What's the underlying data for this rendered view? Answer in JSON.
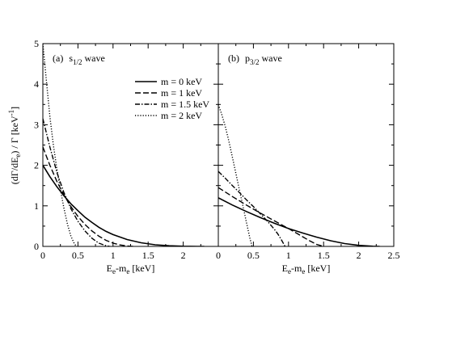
{
  "chart_data": [
    {
      "type": "line",
      "panel_label": "(a)",
      "panel_title_main": "s",
      "panel_title_sub": "1/2",
      "panel_title_tail": "wave",
      "xlabel": "E_e-m_e [keV]",
      "ylabel": "(dΓ/dE_e) / Γ [keV^-1]",
      "xlim": [
        0,
        2.5
      ],
      "ylim": [
        0,
        5
      ],
      "xticks": [
        "0",
        "0.5",
        "1",
        "1.5",
        "2"
      ],
      "yticks": [
        "0",
        "1",
        "2",
        "3",
        "4",
        "5"
      ],
      "grid": false,
      "series": [
        {
          "name": "m = 0 keV",
          "style": "solid",
          "x": [
            0,
            0.1,
            0.2,
            0.3,
            0.4,
            0.5,
            0.6,
            0.7,
            0.8,
            0.9,
            1.0,
            1.2,
            1.4,
            1.6,
            1.8,
            2.0,
            2.2,
            2.3
          ],
          "y": [
            2.0,
            1.72,
            1.47,
            1.25,
            1.05,
            0.88,
            0.72,
            0.59,
            0.47,
            0.37,
            0.29,
            0.17,
            0.09,
            0.04,
            0.015,
            0.004,
            0.0005,
            0
          ]
        },
        {
          "name": "m = 1 keV",
          "style": "dashed",
          "x": [
            0,
            0.1,
            0.2,
            0.3,
            0.4,
            0.5,
            0.6,
            0.7,
            0.8,
            0.9,
            1.0,
            1.1,
            1.2,
            1.3
          ],
          "y": [
            2.45,
            2.0,
            1.6,
            1.27,
            0.98,
            0.74,
            0.54,
            0.38,
            0.25,
            0.15,
            0.08,
            0.035,
            0.01,
            0
          ]
        },
        {
          "name": "m = 1.5 keV",
          "style": "dashdot",
          "x": [
            0,
            0.1,
            0.2,
            0.3,
            0.4,
            0.5,
            0.6,
            0.7,
            0.8,
            0.9,
            0.95
          ],
          "y": [
            3.15,
            2.45,
            1.82,
            1.33,
            0.93,
            0.62,
            0.38,
            0.2,
            0.08,
            0.015,
            0
          ]
        },
        {
          "name": "m = 2 keV",
          "style": "dotted",
          "x": [
            0,
            0.05,
            0.1,
            0.15,
            0.2,
            0.25,
            0.3,
            0.35,
            0.4,
            0.45,
            0.48
          ],
          "y": [
            5.0,
            4.1,
            3.2,
            2.5,
            1.9,
            1.4,
            0.95,
            0.55,
            0.25,
            0.06,
            0
          ]
        }
      ]
    },
    {
      "type": "line",
      "panel_label": "(b)",
      "panel_title_main": "p",
      "panel_title_sub": "3/2",
      "panel_title_tail": "wave",
      "xlabel": "E_e-m_e [keV]",
      "xlim": [
        0,
        2.5
      ],
      "ylim": [
        0,
        5
      ],
      "xticks": [
        "0",
        "0.5",
        "1",
        "1.5",
        "2",
        "2.5"
      ],
      "grid": false,
      "series": [
        {
          "name": "m = 0 keV",
          "style": "solid",
          "x": [
            0,
            0.2,
            0.4,
            0.6,
            0.8,
            1.0,
            1.2,
            1.4,
            1.6,
            1.8,
            2.0,
            2.2,
            2.3
          ],
          "y": [
            1.2,
            1.02,
            0.86,
            0.71,
            0.57,
            0.44,
            0.33,
            0.23,
            0.14,
            0.07,
            0.025,
            0.003,
            0
          ]
        },
        {
          "name": "m = 1 keV",
          "style": "dashed",
          "x": [
            0,
            0.2,
            0.4,
            0.6,
            0.8,
            1.0,
            1.1,
            1.2,
            1.3,
            1.4,
            1.5
          ],
          "y": [
            1.45,
            1.23,
            1.02,
            0.82,
            0.63,
            0.44,
            0.34,
            0.24,
            0.14,
            0.05,
            0
          ]
        },
        {
          "name": "m = 1.5 keV",
          "style": "dashdot",
          "x": [
            0,
            0.1,
            0.2,
            0.3,
            0.4,
            0.5,
            0.6,
            0.7,
            0.8,
            0.85,
            0.9,
            0.95
          ],
          "y": [
            1.85,
            1.68,
            1.5,
            1.33,
            1.15,
            0.98,
            0.8,
            0.62,
            0.42,
            0.3,
            0.16,
            0
          ]
        },
        {
          "name": "m = 2 keV",
          "style": "dotted",
          "x": [
            0,
            0.05,
            0.1,
            0.15,
            0.2,
            0.25,
            0.3,
            0.35,
            0.4,
            0.45,
            0.48
          ],
          "y": [
            3.5,
            3.25,
            2.95,
            2.6,
            2.2,
            1.8,
            1.4,
            1.0,
            0.6,
            0.2,
            0
          ]
        }
      ]
    }
  ],
  "legend": {
    "placement": "upper-right of panel (a)",
    "entries": [
      "m = 0 keV",
      "m = 1 keV",
      "m = 1.5 keV",
      "m = 2 keV"
    ]
  }
}
